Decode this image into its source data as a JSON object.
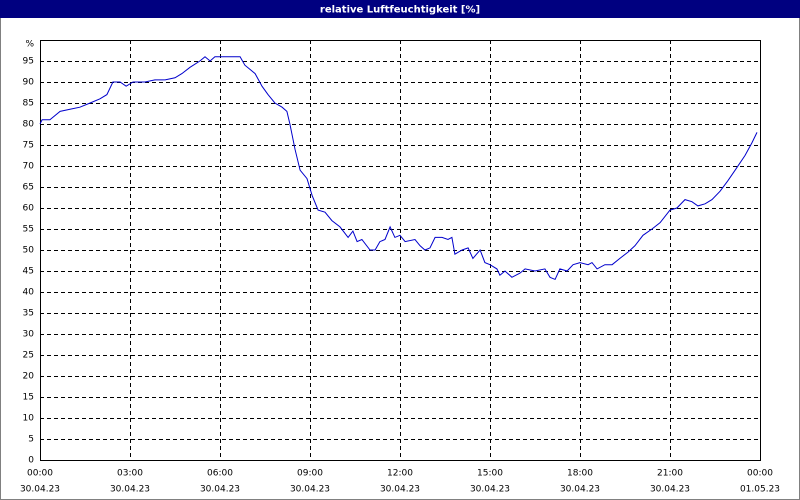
{
  "chart_data": {
    "type": "line",
    "title": "relative Luftfeuchtigkeit [%]",
    "y_unit": "%",
    "color": "#0000cc",
    "grid": true,
    "xlim": [
      0,
      24
    ],
    "xticks": [
      {
        "value": 0,
        "label": "00:00",
        "date": "30.04.23"
      },
      {
        "value": 3,
        "label": "03:00",
        "date": "30.04.23"
      },
      {
        "value": 6,
        "label": "06:00",
        "date": "30.04.23"
      },
      {
        "value": 9,
        "label": "09:00",
        "date": "30.04.23"
      },
      {
        "value": 12,
        "label": "12:00",
        "date": "30.04.23"
      },
      {
        "value": 15,
        "label": "15:00",
        "date": "30.04.23"
      },
      {
        "value": 18,
        "label": "18:00",
        "date": "30.04.23"
      },
      {
        "value": 21,
        "label": "21:00",
        "date": "30.04.23"
      },
      {
        "value": 24,
        "label": "00:00",
        "date": "01.05.23"
      }
    ],
    "ylim": [
      0,
      100
    ],
    "yticks": [
      0,
      5,
      10,
      15,
      20,
      25,
      30,
      35,
      40,
      45,
      50,
      55,
      60,
      65,
      70,
      75,
      80,
      85,
      90,
      95
    ],
    "x": [
      0,
      0.07,
      0.33,
      0.67,
      1,
      1.33,
      1.67,
      2,
      2.23,
      2.43,
      2.67,
      2.87,
      3.1,
      3.5,
      3.83,
      4.17,
      4.5,
      4.73,
      5,
      5.33,
      5.5,
      5.67,
      5.83,
      6.17,
      6.4,
      6.67,
      6.83,
      7,
      7.17,
      7.4,
      7.6,
      7.83,
      8.07,
      8.23,
      8.33,
      8.5,
      8.67,
      8.9,
      9.07,
      9.27,
      9.5,
      9.73,
      10,
      10.27,
      10.43,
      10.57,
      10.73,
      11,
      11.17,
      11.33,
      11.5,
      11.67,
      11.83,
      12,
      12.17,
      12.5,
      12.67,
      12.83,
      13,
      13.17,
      13.4,
      13.6,
      13.73,
      13.83,
      14.07,
      14.27,
      14.43,
      14.67,
      14.83,
      15,
      15.23,
      15.33,
      15.5,
      15.73,
      16,
      16.17,
      16.5,
      16.83,
      17,
      17.17,
      17.33,
      17.57,
      17.77,
      18,
      18.27,
      18.4,
      18.57,
      18.83,
      19.07,
      19.33,
      19.6,
      19.83,
      20.1,
      20.4,
      20.67,
      21,
      21.23,
      21.5,
      21.73,
      21.93,
      22.17,
      22.4,
      22.67,
      22.93,
      23.17,
      23.5,
      23.73,
      23.9
    ],
    "values": [
      80,
      81,
      81,
      83,
      83.5,
      84,
      85,
      86,
      87,
      90,
      90,
      89,
      90,
      90,
      90.5,
      90.5,
      91,
      92,
      93.5,
      95,
      96,
      95,
      96,
      96,
      96,
      96,
      94,
      93,
      92,
      89,
      87,
      85,
      84,
      83,
      80,
      74,
      69,
      67,
      63,
      59.5,
      59,
      57,
      55.5,
      53,
      54.5,
      52,
      52.5,
      50,
      50,
      52,
      52.5,
      55.5,
      53,
      53.5,
      52,
      52.5,
      51,
      50,
      50.5,
      53,
      53,
      52.5,
      53,
      49,
      50,
      50.5,
      48,
      50,
      47,
      46.5,
      45.5,
      44,
      45,
      43.5,
      44.5,
      45.5,
      45,
      45.5,
      43.5,
      43,
      45.5,
      45,
      46.5,
      47,
      46.5,
      47,
      45.5,
      46.5,
      46.5,
      48,
      49.5,
      51,
      53.5,
      55,
      56.5,
      59.5,
      60,
      62,
      61.5,
      60.5,
      61,
      62,
      64,
      66.5,
      69,
      72.5,
      75.5,
      78
    ]
  }
}
